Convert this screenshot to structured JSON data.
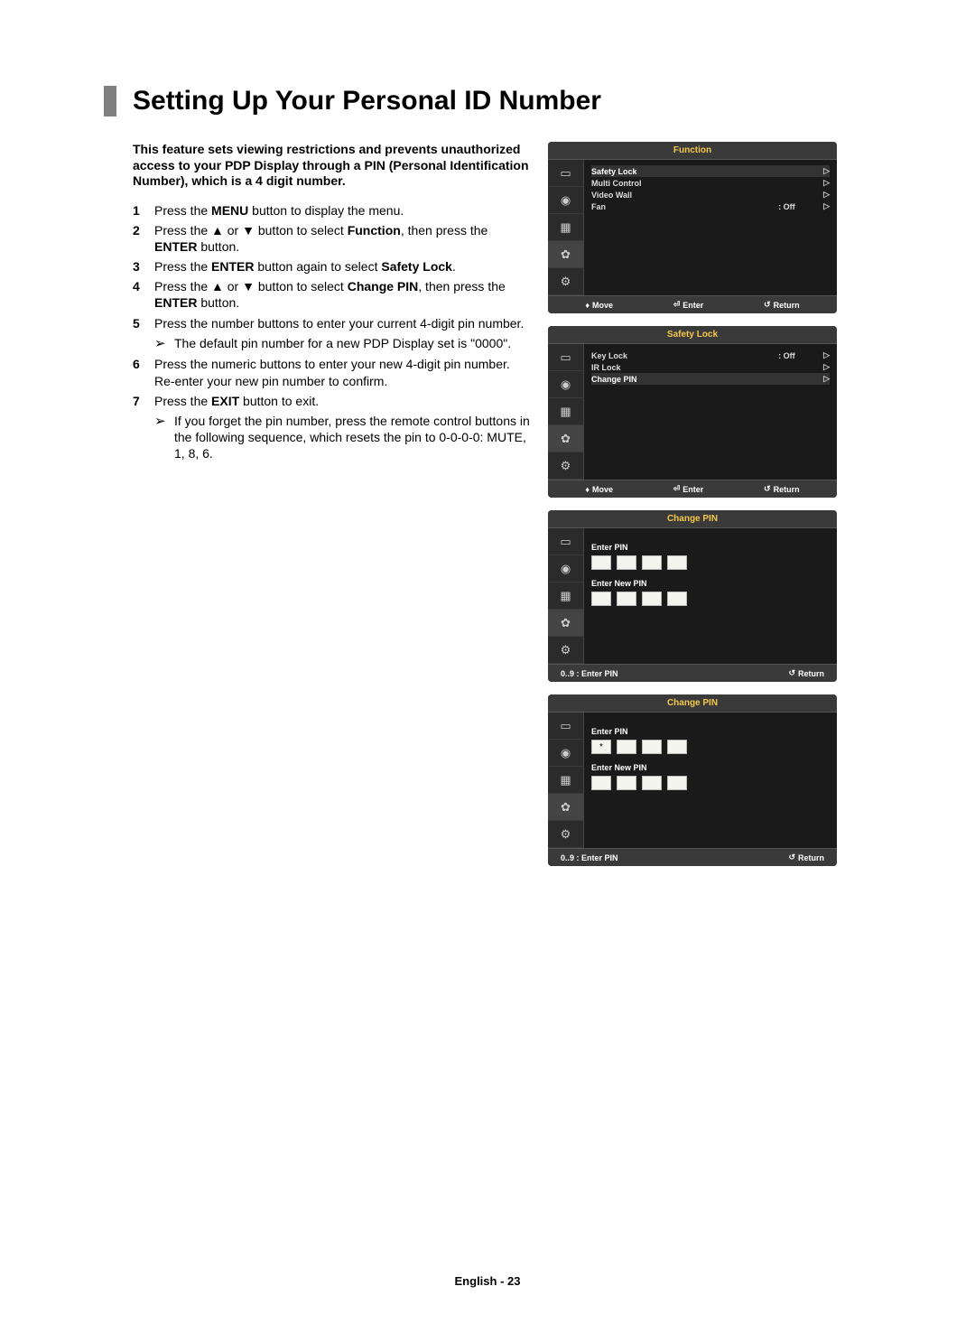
{
  "title": "Setting Up Your Personal ID Number",
  "intro": "This feature sets viewing restrictions and prevents unauthorized access to your PDP Display through a PIN (Personal Identification Number), which is a 4 digit number.",
  "steps": {
    "s1": {
      "num": "1",
      "pre": "Press the ",
      "b1": "MENU",
      "post": " button to display the menu."
    },
    "s2": {
      "num": "2",
      "pre": "Press the ▲ or ▼ button to select ",
      "b1": "Function",
      "mid": ", then press the ",
      "b2": "ENTER",
      "post": " button."
    },
    "s3": {
      "num": "3",
      "pre": "Press the ",
      "b1": "ENTER",
      "mid": " button again to select ",
      "b2": "Safety Lock",
      "post": "."
    },
    "s4": {
      "num": "4",
      "pre": "Press the ▲ or ▼ button to select ",
      "b1": "Change PIN",
      "mid": ", then press the ",
      "b2": "ENTER",
      "post": " button."
    },
    "s5": {
      "num": "5",
      "text": "Press the number buttons to enter your current 4-digit pin number."
    },
    "note1": "The default pin number for a new PDP Display set is \"0000\".",
    "s6": {
      "num": "6",
      "text": "Press the numeric buttons to enter your new 4-digit pin number. Re-enter your new pin number to confirm."
    },
    "s7": {
      "num": "7",
      "pre": "Press the ",
      "b1": "EXIT",
      "post": " button to exit."
    },
    "note2": "If you forget the pin number, press the remote control buttons in the following sequence, which resets the pin to 0-0-0-0: MUTE, 1, 8, 6."
  },
  "osd": {
    "menu1": {
      "title": "Function",
      "rows": {
        "r1": {
          "label": "Safety Lock",
          "val": "",
          "tri": "▷"
        },
        "r2": {
          "label": "Multi Control",
          "val": "",
          "tri": "▷"
        },
        "r3": {
          "label": "Video Wall",
          "val": "",
          "tri": "▷"
        },
        "r4": {
          "label": "Fan",
          "val": ": Off",
          "tri": "▷"
        }
      },
      "footer": {
        "move": "Move",
        "enter": "Enter",
        "return": "Return"
      }
    },
    "menu2": {
      "title": "Safety Lock",
      "rows": {
        "r1": {
          "label": "Key Lock",
          "val": ": Off",
          "tri": "▷"
        },
        "r2": {
          "label": "IR Lock",
          "val": "",
          "tri": "▷"
        },
        "r3": {
          "label": "Change PIN",
          "val": "",
          "tri": "▷"
        }
      },
      "footer": {
        "move": "Move",
        "enter": "Enter",
        "return": "Return"
      }
    },
    "menu3": {
      "title": "Change PIN",
      "enterPin": "Enter PIN",
      "enterNewPin": "Enter New PIN",
      "firstBox": "",
      "footer": {
        "left": "0..9 : Enter PIN",
        "return": "Return"
      }
    },
    "menu4": {
      "title": "Change PIN",
      "enterPin": "Enter PIN",
      "enterNewPin": "Enter New PIN",
      "firstBox": "*",
      "footer": {
        "left": "0..9 : Enter PIN",
        "return": "Return"
      }
    }
  },
  "symbols": {
    "updown": "♦",
    "enter": "⏎",
    "return": "↺",
    "noteArrow": "➢"
  },
  "footer": "English - 23"
}
